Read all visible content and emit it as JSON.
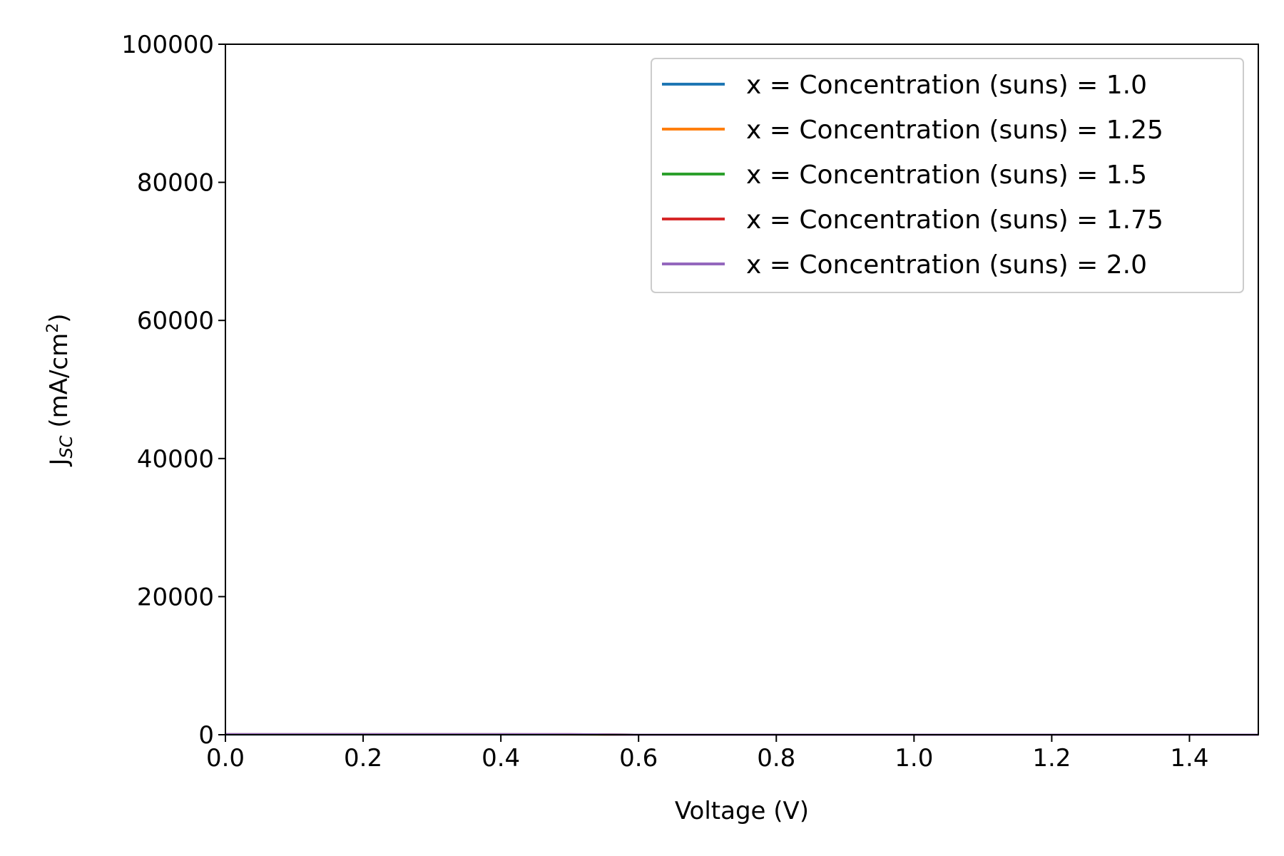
{
  "chart_data": {
    "type": "line",
    "xlabel": "Voltage (V)",
    "ylabel": {
      "main": "J",
      "subscript": "SC",
      "unit_prefix": " (mA/cm",
      "unit_superscript": "2",
      "unit_suffix": ")"
    },
    "xlim": [
      0.0,
      1.5
    ],
    "ylim": [
      0,
      100000
    ],
    "xticks": [
      0.0,
      0.2,
      0.4,
      0.6,
      0.8,
      1.0,
      1.2,
      1.4
    ],
    "xtick_labels": [
      "0.0",
      "0.2",
      "0.4",
      "0.6",
      "0.8",
      "1.0",
      "1.2",
      "1.4"
    ],
    "yticks": [
      0,
      20000,
      40000,
      60000,
      80000,
      100000
    ],
    "ytick_labels": [
      "0",
      "20000",
      "40000",
      "60000",
      "80000",
      "100000"
    ],
    "grid": false,
    "legend_position": "top-right",
    "series": [
      {
        "name": "x = Concentration (suns) = 1.0",
        "color": "#1f77b4",
        "x": [
          0.0,
          0.1,
          0.2,
          0.3,
          0.4,
          0.45,
          0.5,
          0.52,
          0.54,
          0.56,
          0.6,
          0.8,
          1.0,
          1.2,
          1.5
        ],
        "y": [
          40,
          40,
          40,
          40,
          39,
          38,
          34,
          30,
          22,
          8,
          0,
          0,
          0,
          0,
          0
        ]
      },
      {
        "name": "x = Concentration (suns) = 1.25",
        "color": "#ff7f0e",
        "x": [
          0.0,
          0.1,
          0.2,
          0.3,
          0.4,
          0.45,
          0.5,
          0.52,
          0.54,
          0.56,
          0.6,
          0.8,
          1.0,
          1.2,
          1.5
        ],
        "y": [
          50,
          50,
          50,
          50,
          49,
          48,
          44,
          39,
          30,
          14,
          0,
          0,
          0,
          0,
          0
        ]
      },
      {
        "name": "x = Concentration (suns) = 1.5",
        "color": "#2ca02c",
        "x": [
          0.0,
          0.1,
          0.2,
          0.3,
          0.4,
          0.45,
          0.5,
          0.52,
          0.54,
          0.56,
          0.6,
          0.8,
          1.0,
          1.2,
          1.5
        ],
        "y": [
          60,
          60,
          60,
          60,
          59,
          58,
          54,
          48,
          38,
          20,
          0,
          0,
          0,
          0,
          0
        ]
      },
      {
        "name": "x = Concentration (suns) = 1.75",
        "color": "#d62728",
        "x": [
          0.0,
          0.1,
          0.2,
          0.3,
          0.4,
          0.45,
          0.5,
          0.52,
          0.54,
          0.56,
          0.6,
          0.8,
          1.0,
          1.2,
          1.5
        ],
        "y": [
          70,
          70,
          70,
          70,
          69,
          68,
          64,
          57,
          46,
          26,
          0,
          0,
          0,
          0,
          0
        ]
      },
      {
        "name": "x = Concentration (suns) = 2.0",
        "color": "#9467bd",
        "x": [
          0.0,
          0.1,
          0.2,
          0.3,
          0.4,
          0.45,
          0.5,
          0.52,
          0.54,
          0.56,
          0.6,
          0.8,
          1.0,
          1.2,
          1.5
        ],
        "y": [
          80,
          80,
          80,
          80,
          79,
          78,
          74,
          66,
          54,
          32,
          0,
          0,
          0,
          0,
          0
        ]
      }
    ]
  }
}
